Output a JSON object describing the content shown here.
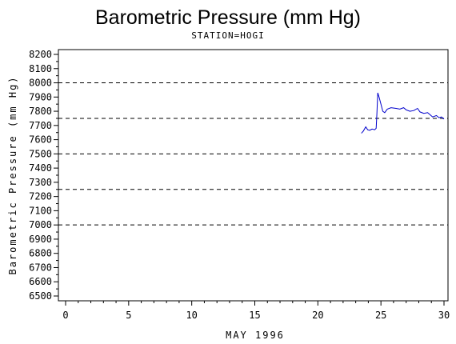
{
  "chart_data": {
    "type": "line",
    "title": "Barometric Pressure (mm Hg)",
    "subtitle": "STATION=HOGI",
    "xlabel": "MAY 1996",
    "ylabel": "Barometric Pressure (mm Hg)",
    "xlim": [
      0,
      30
    ],
    "ylim": [
      6500,
      8200
    ],
    "x_ticks": [
      0,
      5,
      10,
      15,
      20,
      25,
      30
    ],
    "y_ticks": [
      6500,
      6600,
      6700,
      6800,
      6900,
      7000,
      7100,
      7200,
      7300,
      7400,
      7500,
      7600,
      7700,
      7800,
      7900,
      8000,
      8100,
      8200
    ],
    "reference_lines": [
      7000,
      7250,
      7500,
      7750,
      8000
    ],
    "series": [
      {
        "color": "#0000cc",
        "points": [
          [
            23.45,
            7645
          ],
          [
            23.6,
            7660
          ],
          [
            23.8,
            7690
          ],
          [
            23.95,
            7670
          ],
          [
            24.1,
            7665
          ],
          [
            24.3,
            7675
          ],
          [
            24.5,
            7670
          ],
          [
            24.62,
            7680
          ],
          [
            24.68,
            7780
          ],
          [
            24.75,
            7930
          ],
          [
            24.85,
            7900
          ],
          [
            25.0,
            7850
          ],
          [
            25.15,
            7800
          ],
          [
            25.3,
            7790
          ],
          [
            25.5,
            7815
          ],
          [
            25.8,
            7825
          ],
          [
            26.2,
            7820
          ],
          [
            26.5,
            7815
          ],
          [
            26.8,
            7825
          ],
          [
            27.0,
            7810
          ],
          [
            27.3,
            7800
          ],
          [
            27.6,
            7805
          ],
          [
            27.9,
            7820
          ],
          [
            28.1,
            7795
          ],
          [
            28.4,
            7785
          ],
          [
            28.7,
            7790
          ],
          [
            28.9,
            7775
          ],
          [
            29.1,
            7760
          ],
          [
            29.4,
            7770
          ],
          [
            29.6,
            7755
          ],
          [
            29.8,
            7760
          ],
          [
            30.0,
            7745
          ]
        ]
      }
    ]
  }
}
